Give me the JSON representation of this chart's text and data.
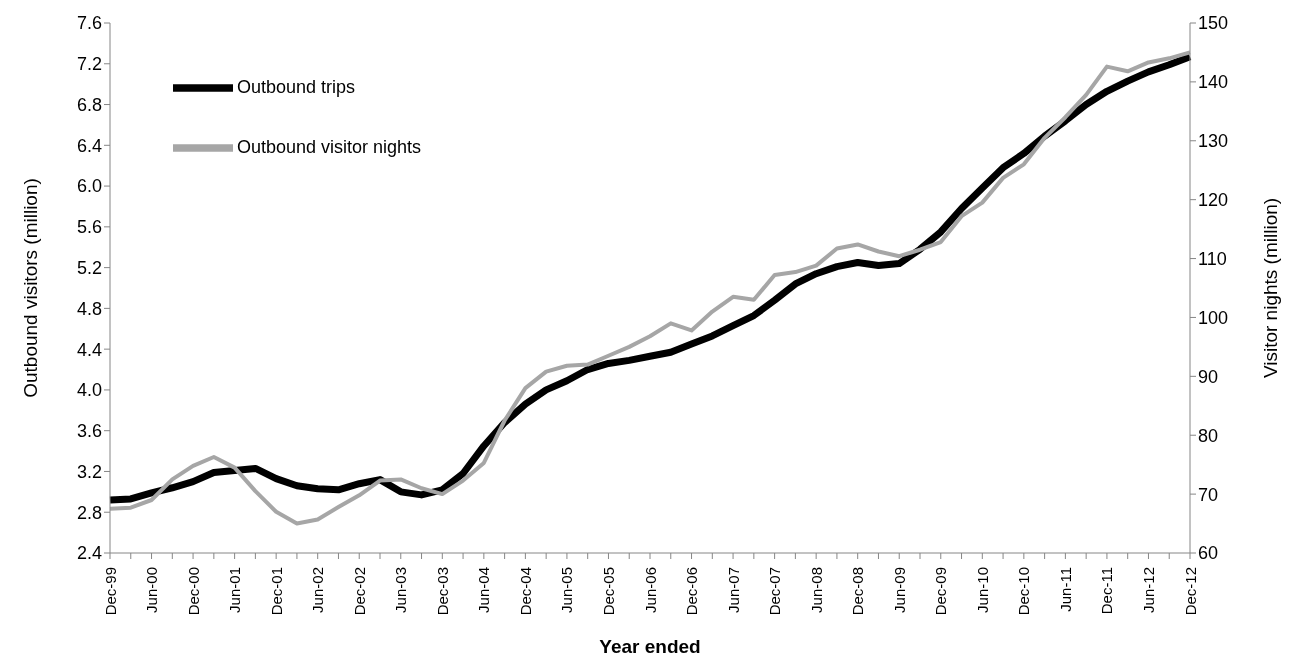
{
  "chart_data": {
    "type": "line",
    "xlabel": "Year ended",
    "ylabel": "Outbound visitors (million)",
    "y2label": "Visitor nights (million)",
    "categories": [
      "Dec-99",
      null,
      "Jun-00",
      null,
      "Dec-00",
      null,
      "Jun-01",
      null,
      "Dec-01",
      null,
      "Jun-02",
      null,
      "Dec-02",
      null,
      "Jun-03",
      null,
      "Dec-03",
      null,
      "Jun-04",
      null,
      "Dec-04",
      null,
      "Jun-05",
      null,
      "Dec-05",
      null,
      "Jun-06",
      null,
      "Dec-06",
      null,
      "Jun-07",
      null,
      "Dec-07",
      null,
      "Jun-08",
      null,
      "Dec-08",
      null,
      "Jun-09",
      null,
      "Dec-09",
      null,
      "Jun-10",
      null,
      "Dec-10",
      null,
      "Jun-11",
      null,
      "Dec-11",
      null,
      "Jun-12",
      null,
      "Dec-12"
    ],
    "series": [
      {
        "name": "Outbound trips",
        "color": "#000000",
        "values": [
          2.92,
          2.93,
          2.99,
          3.04,
          3.1,
          3.19,
          3.21,
          3.23,
          3.13,
          3.06,
          3.03,
          3.02,
          3.08,
          3.12,
          3.0,
          2.97,
          3.02,
          3.18,
          3.45,
          3.68,
          3.86,
          4.0,
          4.09,
          4.2,
          4.26,
          4.29,
          4.33,
          4.37,
          4.45,
          4.53,
          4.63,
          4.73,
          4.88,
          5.04,
          5.14,
          5.21,
          5.25,
          5.22,
          5.24,
          5.38,
          5.55,
          5.78,
          5.98,
          6.18,
          6.32,
          6.49,
          6.64,
          6.8,
          6.93,
          7.03,
          7.12,
          7.19,
          7.27
        ]
      },
      {
        "name": "Outbound visitor nights",
        "color": "#a6a6a6",
        "axis": "y2",
        "values": [
          67.5,
          67.7,
          69.0,
          72.5,
          74.8,
          76.3,
          74.5,
          70.5,
          67.0,
          65.0,
          65.7,
          67.8,
          69.8,
          72.3,
          72.5,
          71.0,
          70.0,
          72.3,
          75.3,
          82.5,
          88.0,
          90.8,
          91.8,
          92.0,
          93.5,
          95.0,
          96.8,
          99.0,
          97.8,
          101.0,
          103.5,
          103.0,
          107.2,
          107.7,
          108.8,
          111.7,
          112.4,
          111.2,
          110.4,
          111.5,
          112.8,
          117.2,
          119.5,
          123.7,
          126.0,
          130.5,
          134.0,
          137.8,
          142.6,
          141.8,
          143.3,
          144.0,
          145.0
        ]
      }
    ],
    "ylim": [
      2.4,
      7.6
    ],
    "yticks": [
      {
        "value": 2.4,
        "label": "2.4"
      },
      {
        "value": 2.8,
        "label": "2.8"
      },
      {
        "value": 3.2,
        "label": "3.2"
      },
      {
        "value": 3.6,
        "label": "3.6"
      },
      {
        "value": 4.0,
        "label": "4.0"
      },
      {
        "value": 4.4,
        "label": "4.4"
      },
      {
        "value": 4.8,
        "label": "4.8"
      },
      {
        "value": 5.2,
        "label": "5.2"
      },
      {
        "value": 5.6,
        "label": "5.6"
      },
      {
        "value": 6.0,
        "label": "6.0"
      },
      {
        "value": 6.4,
        "label": "6.4"
      },
      {
        "value": 6.8,
        "label": "6.8"
      },
      {
        "value": 7.2,
        "label": "7.2"
      },
      {
        "value": 7.6,
        "label": "7.6"
      }
    ],
    "y2lim": [
      60,
      150
    ],
    "y2ticks": [
      60,
      70,
      80,
      90,
      100,
      110,
      120,
      130,
      140,
      150
    ],
    "legend": "top left",
    "grid": false,
    "marker": "none",
    "line_style": "solid"
  }
}
